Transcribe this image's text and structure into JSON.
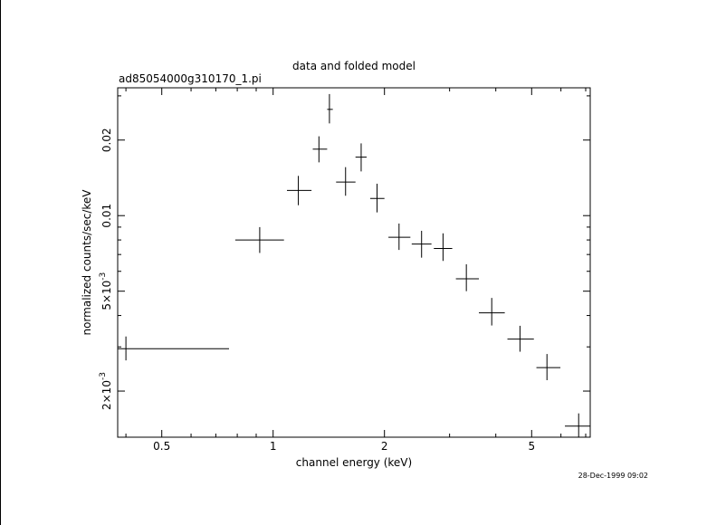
{
  "chart_data": {
    "type": "scatter",
    "title": "data and folded model",
    "subtitle": "ad85054000g310170_1.pi",
    "xlabel": "channel energy (keV)",
    "ylabel": "normalized counts/sec/keV",
    "timestamp": "28-Dec-1999 09:02",
    "x_scale": "log",
    "y_scale": "log",
    "xlim": [
      0.38,
      7.2
    ],
    "ylim": [
      0.00131,
      0.0323
    ],
    "x_ticks": [
      {
        "value": 0.5,
        "label": "0.5"
      },
      {
        "value": 1,
        "label": "1"
      },
      {
        "value": 2,
        "label": "2"
      },
      {
        "value": 5,
        "label": "5"
      }
    ],
    "y_ticks": [
      {
        "value": 0.002,
        "label": "2×10",
        "exp": "-3"
      },
      {
        "value": 0.005,
        "label": "5×10",
        "exp": "-3"
      },
      {
        "value": 0.01,
        "label": "0.01",
        "exp": ""
      },
      {
        "value": 0.02,
        "label": "0.02",
        "exp": ""
      }
    ],
    "grid": false,
    "legend": "none",
    "points": [
      {
        "x": 0.4,
        "xlo": 0.38,
        "xhi": 0.76,
        "y": 0.00295,
        "ylo": 0.00265,
        "yhi": 0.0033
      },
      {
        "x": 0.92,
        "xlo": 0.79,
        "xhi": 1.07,
        "y": 0.008,
        "ylo": 0.0071,
        "yhi": 0.009
      },
      {
        "x": 1.17,
        "xlo": 1.09,
        "xhi": 1.27,
        "y": 0.0126,
        "ylo": 0.011,
        "yhi": 0.0144
      },
      {
        "x": 1.33,
        "xlo": 1.28,
        "xhi": 1.4,
        "y": 0.0184,
        "ylo": 0.0163,
        "yhi": 0.0207
      },
      {
        "x": 1.42,
        "xlo": 1.4,
        "xhi": 1.45,
        "y": 0.0265,
        "ylo": 0.0233,
        "yhi": 0.0305
      },
      {
        "x": 1.57,
        "xlo": 1.48,
        "xhi": 1.67,
        "y": 0.0136,
        "ylo": 0.012,
        "yhi": 0.0156
      },
      {
        "x": 1.73,
        "xlo": 1.67,
        "xhi": 1.79,
        "y": 0.0171,
        "ylo": 0.015,
        "yhi": 0.0194
      },
      {
        "x": 1.91,
        "xlo": 1.83,
        "xhi": 2.0,
        "y": 0.0117,
        "ylo": 0.0103,
        "yhi": 0.0134
      },
      {
        "x": 2.19,
        "xlo": 2.05,
        "xhi": 2.35,
        "y": 0.0082,
        "ylo": 0.0073,
        "yhi": 0.0093
      },
      {
        "x": 2.52,
        "xlo": 2.37,
        "xhi": 2.68,
        "y": 0.0077,
        "ylo": 0.0068,
        "yhi": 0.0087
      },
      {
        "x": 2.88,
        "xlo": 2.72,
        "xhi": 3.05,
        "y": 0.0074,
        "ylo": 0.0066,
        "yhi": 0.0085
      },
      {
        "x": 3.33,
        "xlo": 3.12,
        "xhi": 3.6,
        "y": 0.0056,
        "ylo": 0.005,
        "yhi": 0.0064
      },
      {
        "x": 3.9,
        "xlo": 3.6,
        "xhi": 4.23,
        "y": 0.0041,
        "ylo": 0.00365,
        "yhi": 0.0047
      },
      {
        "x": 4.65,
        "xlo": 4.3,
        "xhi": 5.07,
        "y": 0.00322,
        "ylo": 0.00287,
        "yhi": 0.00364
      },
      {
        "x": 5.5,
        "xlo": 5.15,
        "xhi": 5.98,
        "y": 0.00248,
        "ylo": 0.00221,
        "yhi": 0.00281
      },
      {
        "x": 6.7,
        "xlo": 6.15,
        "xhi": 7.2,
        "y": 0.00145,
        "ylo": 0.00131,
        "yhi": 0.00163
      }
    ]
  }
}
